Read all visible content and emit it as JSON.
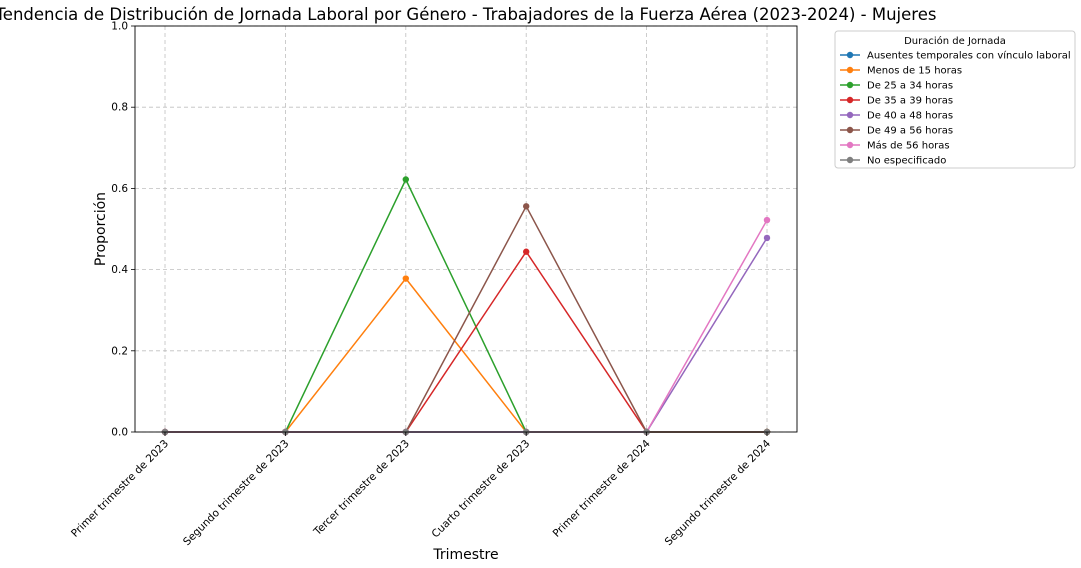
{
  "chart_data": {
    "type": "line",
    "title": "Tendencia de Distribución de Jornada Laboral por Género - Trabajadores de la Fuerza Aérea (2023-2024) - Mujeres",
    "xlabel": "Trimestre",
    "ylabel": "Proporción",
    "ylim": [
      0,
      1
    ],
    "yticks": [
      "0.0",
      "0.2",
      "0.4",
      "0.6",
      "0.8",
      "1.0"
    ],
    "grid": true,
    "legend_title": "Duración de Jornada",
    "legend_position": "outside-top-right",
    "categories": [
      "Primer trimestre de 2023",
      "Segundo trimestre de 2023",
      "Tercer trimestre de 2023",
      "Cuarto trimestre de 2023",
      "Primer trimestre de 2024",
      "Segundo trimestre de 2024"
    ],
    "series": [
      {
        "name": "Ausentes temporales con vínculo laboral",
        "color": "#1f77b4",
        "values": [
          0,
          0,
          0,
          0,
          0,
          0
        ]
      },
      {
        "name": "Menos de 15 horas",
        "color": "#ff7f0e",
        "values": [
          0,
          0,
          0.378,
          0,
          0,
          0
        ]
      },
      {
        "name": "De 25 a 34 horas",
        "color": "#2ca02c",
        "values": [
          0,
          0,
          0.622,
          0,
          0,
          0
        ]
      },
      {
        "name": "De 35 a 39 horas",
        "color": "#d62728",
        "values": [
          0,
          0,
          0,
          0.444,
          0,
          0
        ]
      },
      {
        "name": "De 40 a 48 horas",
        "color": "#9467bd",
        "values": [
          0,
          0,
          0,
          0,
          0,
          0.478
        ]
      },
      {
        "name": "De 49 a 56 horas",
        "color": "#8c564b",
        "values": [
          0,
          0,
          0,
          0.556,
          0,
          0
        ]
      },
      {
        "name": "Más de 56 horas",
        "color": "#e377c2",
        "values": [
          0,
          0,
          0,
          0,
          0,
          0.522
        ]
      },
      {
        "name": "No especificado",
        "color": "#7f7f7f",
        "values": [
          0,
          0,
          0,
          0,
          0,
          0
        ]
      }
    ]
  }
}
